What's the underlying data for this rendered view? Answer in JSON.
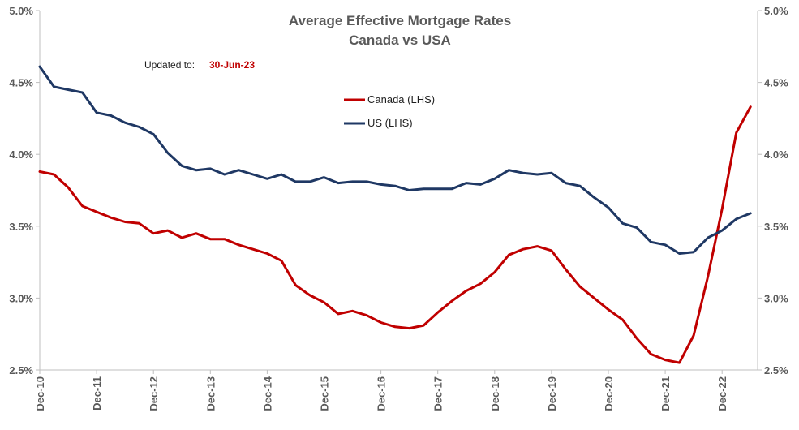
{
  "chart_data": {
    "type": "line",
    "title": "Average Effective Mortgage Rates",
    "subtitle": "Canada  vs USA",
    "updated_label": "Updated to:",
    "updated_date": "30-Jun-23",
    "xlabel": "",
    "ylabel": "",
    "ylim": [
      2.5,
      5.0
    ],
    "y_ticks": [
      "2.5%",
      "3.0%",
      "3.5%",
      "4.0%",
      "4.5%",
      "5.0%"
    ],
    "y_tick_values": [
      2.5,
      3.0,
      3.5,
      4.0,
      4.5,
      5.0
    ],
    "x_tick_labels": [
      "Dec-10",
      "Dec-11",
      "Dec-12",
      "Dec-13",
      "Dec-14",
      "Dec-15",
      "Dec-16",
      "Dec-17",
      "Dec-18",
      "Dec-19",
      "Dec-20",
      "Dec-21",
      "Dec-22"
    ],
    "x_range_quarters": [
      0,
      50.5
    ],
    "grid": "none",
    "legend_position": "top-center",
    "series": [
      {
        "name": "Canada (LHS)",
        "color": "#c00000",
        "values": [
          3.88,
          3.86,
          3.77,
          3.64,
          3.6,
          3.56,
          3.53,
          3.52,
          3.45,
          3.47,
          3.42,
          3.45,
          3.41,
          3.41,
          3.37,
          3.34,
          3.31,
          3.26,
          3.09,
          3.02,
          2.97,
          2.89,
          2.91,
          2.88,
          2.83,
          2.8,
          2.79,
          2.81,
          2.9,
          2.98,
          3.05,
          3.1,
          3.18,
          3.3,
          3.34,
          3.36,
          3.33,
          3.2,
          3.08,
          3.0,
          2.92,
          2.85,
          2.72,
          2.61,
          2.57,
          2.55,
          2.74,
          3.15,
          3.62,
          4.15,
          4.33
        ]
      },
      {
        "name": "US (LHS)",
        "color": "#1f3864",
        "values": [
          4.61,
          4.47,
          4.45,
          4.43,
          4.29,
          4.27,
          4.22,
          4.19,
          4.14,
          4.01,
          3.92,
          3.89,
          3.9,
          3.86,
          3.89,
          3.86,
          3.83,
          3.86,
          3.81,
          3.81,
          3.84,
          3.8,
          3.81,
          3.81,
          3.79,
          3.78,
          3.75,
          3.76,
          3.76,
          3.76,
          3.8,
          3.79,
          3.83,
          3.89,
          3.87,
          3.86,
          3.87,
          3.8,
          3.78,
          3.7,
          3.63,
          3.52,
          3.49,
          3.39,
          3.37,
          3.31,
          3.32,
          3.42,
          3.47,
          3.55,
          3.59
        ]
      }
    ]
  }
}
